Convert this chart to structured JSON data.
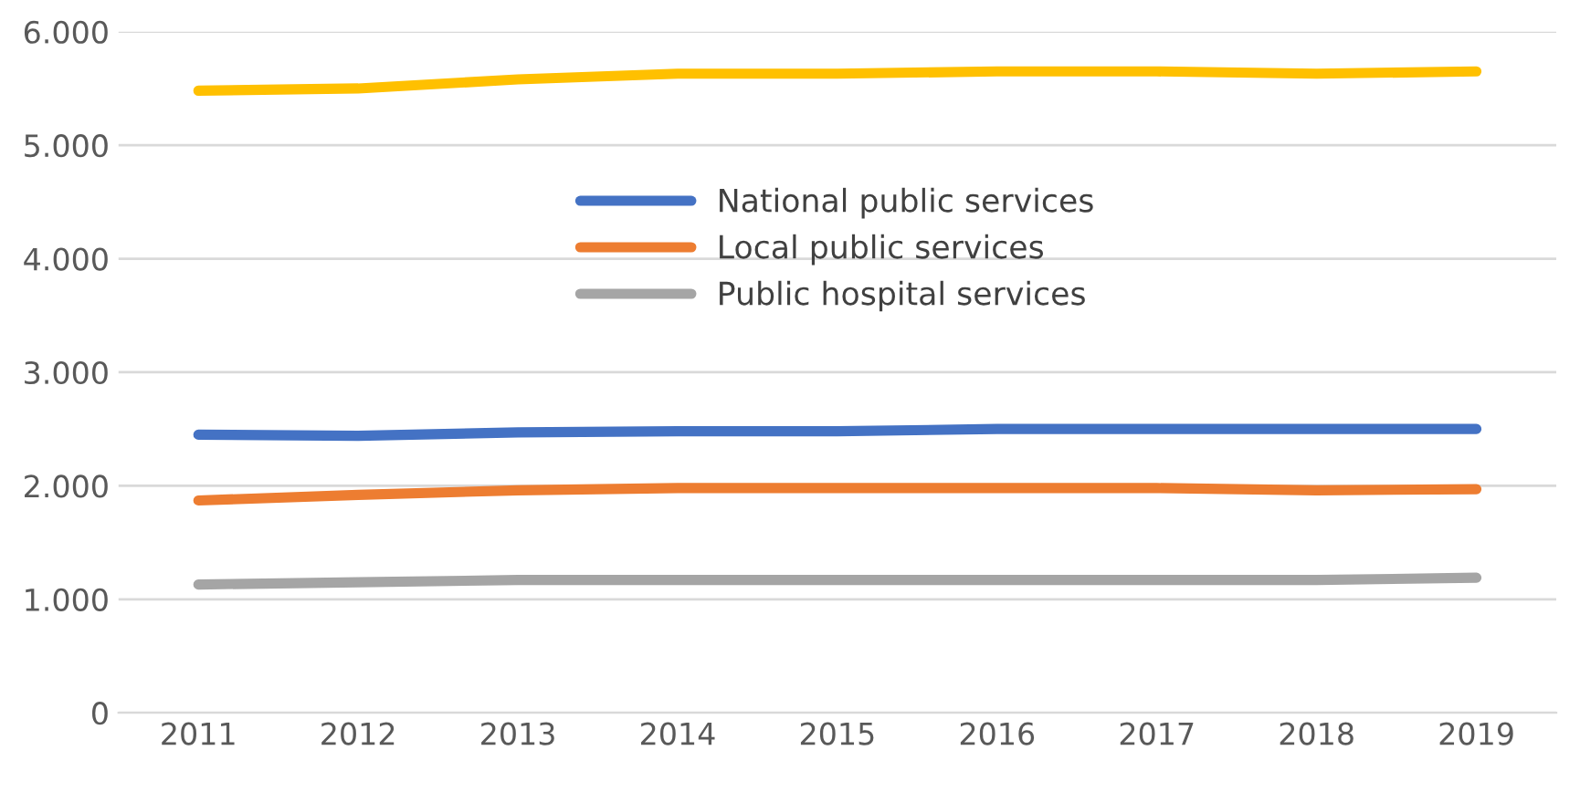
{
  "chart_data": {
    "type": "line",
    "categories": [
      "2011",
      "2012",
      "2013",
      "2014",
      "2015",
      "2016",
      "2017",
      "2018",
      "2019"
    ],
    "series": [
      {
        "color": "#ffc000",
        "values": [
          5480,
          5500,
          5580,
          5630,
          5630,
          5650,
          5650,
          5630,
          5650
        ]
      },
      {
        "name": "National public services",
        "color": "#4472c4",
        "values": [
          2450,
          2440,
          2470,
          2480,
          2480,
          2500,
          2500,
          2500,
          2500
        ]
      },
      {
        "name": "Local public services",
        "color": "#ed7d31",
        "values": [
          1870,
          1920,
          1960,
          1980,
          1980,
          1980,
          1980,
          1960,
          1970
        ]
      },
      {
        "name": "Public hospital services",
        "color": "#a5a5a5",
        "values": [
          1130,
          1150,
          1170,
          1170,
          1170,
          1170,
          1170,
          1170,
          1190
        ]
      }
    ],
    "ylim": [
      0,
      6000
    ],
    "yticks": [
      0,
      {
        "value": 1000,
        "label": "1.000"
      },
      {
        "value": 2000,
        "label": "2.000"
      },
      {
        "value": 3000,
        "label": "3.000"
      },
      {
        "value": 4000,
        "label": "4.000"
      },
      {
        "value": 5000,
        "label": "5.000"
      },
      {
        "value": 6000,
        "label": "6.000"
      }
    ],
    "grid": "y",
    "legend": "center",
    "marker": "none",
    "line_style": "solid"
  }
}
